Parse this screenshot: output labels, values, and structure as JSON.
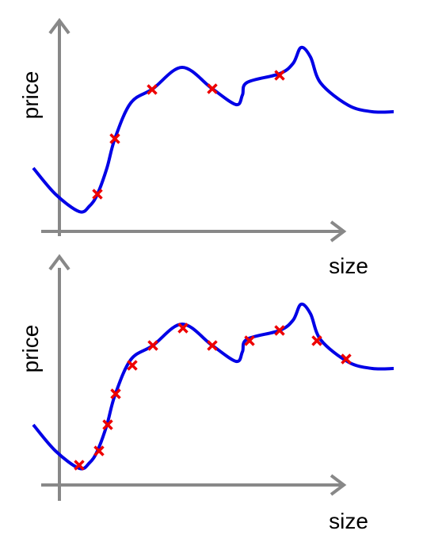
{
  "panels": [
    {
      "y_label": "price",
      "x_label": "size"
    },
    {
      "y_label": "price",
      "x_label": "size"
    }
  ]
}
